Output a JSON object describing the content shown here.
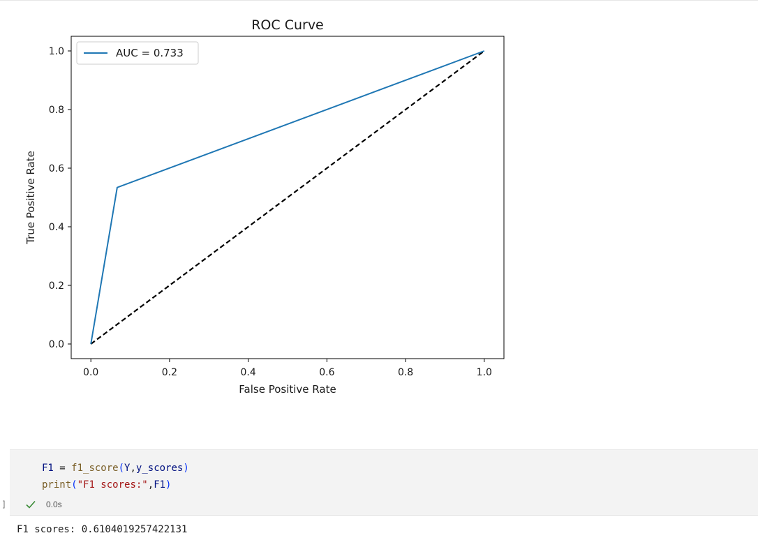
{
  "chart_data": {
    "type": "line",
    "title": "ROC Curve",
    "xlabel": "False Positive Rate",
    "ylabel": "True Positive Rate",
    "xlim": [
      -0.05,
      1.05
    ],
    "ylim": [
      -0.05,
      1.05
    ],
    "xticks": [
      "0.0",
      "0.2",
      "0.4",
      "0.6",
      "0.8",
      "1.0"
    ],
    "yticks": [
      "0.0",
      "0.2",
      "0.4",
      "0.6",
      "0.8",
      "1.0"
    ],
    "legend_position": "top-left",
    "grid": false,
    "series": [
      {
        "name": "AUC = 0.733",
        "color": "#1f77b4",
        "style": "solid",
        "x": [
          0.0,
          0.067,
          1.0
        ],
        "y": [
          0.0,
          0.534,
          1.0
        ]
      },
      {
        "color": "#000000",
        "style": "dashed",
        "x": [
          0.0,
          1.0
        ],
        "y": [
          0.0,
          1.0
        ]
      }
    ]
  },
  "code_cell": {
    "line1": {
      "var_f1": "F1",
      "eq": " = ",
      "fn": "f1_score",
      "open": "(",
      "arg1": "Y",
      "comma": ",",
      "arg2": "y_scores",
      "close": ")"
    },
    "line2": {
      "fn": "print",
      "open": "(",
      "str": "\"F1 scores:\"",
      "comma": ",",
      "arg": "F1",
      "close": ")"
    },
    "exec_time": "0.0s",
    "status_icon": "check-icon",
    "status_color": "#388a34",
    "gutter": "]"
  },
  "output": {
    "text": "F1 scores: 0.6104019257422131"
  }
}
